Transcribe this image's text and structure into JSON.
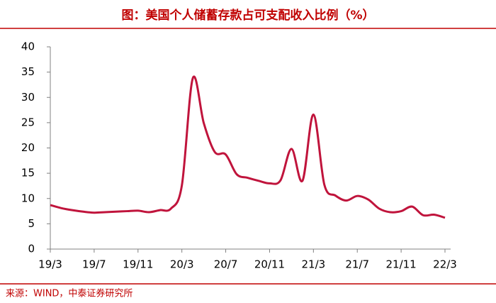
{
  "chart_data": {
    "type": "line",
    "title": "图：美国个人储蓄存款占可支配收入比例（%）",
    "source": "来源：WIND，中泰证券研究所",
    "categories": [
      "19/3",
      null,
      null,
      null,
      "19/7",
      null,
      null,
      null,
      "19/11",
      null,
      null,
      null,
      "20/3",
      null,
      null,
      null,
      "20/7",
      null,
      null,
      null,
      "20/11",
      null,
      null,
      null,
      "21/3",
      null,
      null,
      null,
      "21/7",
      null,
      null,
      null,
      "21/11",
      null,
      null,
      null,
      "22/3"
    ],
    "series": [
      {
        "name": "美国个人储蓄存款占可支配收入比例",
        "color": "#c0143c",
        "values": [
          8.7,
          8.1,
          7.7,
          7.4,
          7.2,
          7.3,
          7.4,
          7.5,
          7.6,
          7.3,
          7.7,
          8.0,
          12.6,
          33.8,
          24.9,
          19.2,
          18.7,
          14.8,
          14.1,
          13.5,
          13.0,
          13.6,
          19.8,
          13.5,
          26.6,
          12.7,
          10.6,
          9.6,
          10.5,
          9.8,
          8.0,
          7.3,
          7.5,
          8.4,
          6.7,
          6.8,
          6.2
        ]
      }
    ],
    "ylim": [
      0,
      40
    ],
    "yticks": [
      0,
      5,
      10,
      15,
      20,
      25,
      30,
      35,
      40
    ],
    "grid": false
  }
}
